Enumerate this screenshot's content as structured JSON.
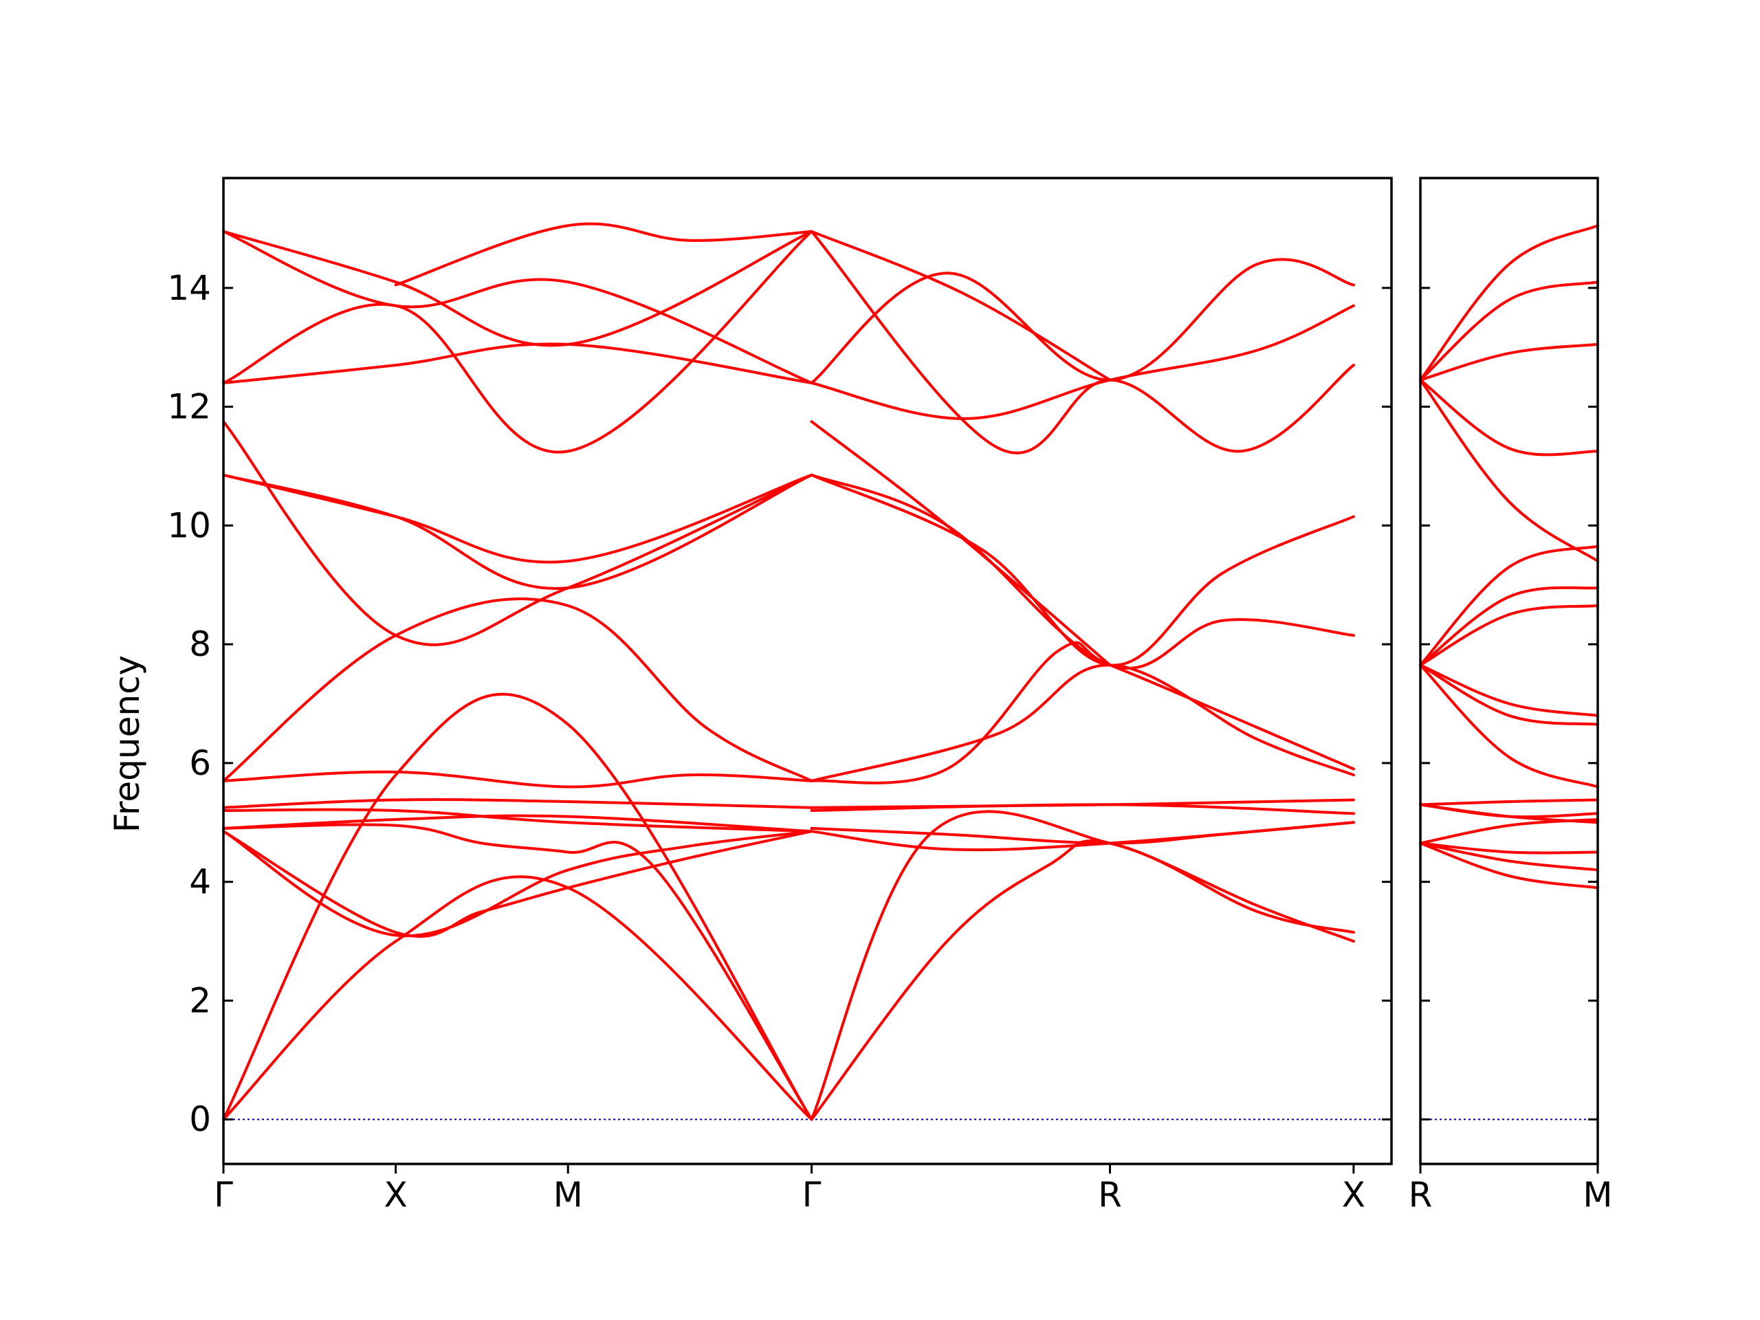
{
  "chart_data": {
    "type": "line",
    "title": "",
    "ylabel": "Frequency",
    "ylim": [
      -0.75,
      15.85
    ],
    "yticks": [
      0,
      2,
      4,
      6,
      8,
      10,
      12,
      14
    ],
    "grid": false,
    "legend": "none",
    "colors": {
      "bands": "#ff0000",
      "zero_line": "#0000cc",
      "frame": "#000000"
    },
    "panels": [
      {
        "id": "left",
        "xlim": [
          0,
          6.78
        ],
        "xticks": [
          {
            "pos": 0,
            "label": "Γ"
          },
          {
            "pos": 1,
            "label": "X"
          },
          {
            "pos": 2,
            "label": "M"
          },
          {
            "pos": 3.414,
            "label": "Γ"
          },
          {
            "pos": 5.146,
            "label": "R"
          },
          {
            "pos": 6.56,
            "label": "X"
          }
        ],
        "bands": [
          [
            [
              0,
              0
            ],
            [
              1,
              3.0
            ],
            [
              2,
              3.9
            ],
            [
              3.414,
              0
            ]
          ],
          [
            [
              0,
              0
            ],
            [
              1,
              5.8
            ],
            [
              2,
              6.65
            ],
            [
              3.414,
              0
            ]
          ],
          [
            [
              0,
              4.85
            ],
            [
              1,
              3.15
            ],
            [
              1.5,
              3.5
            ],
            [
              2,
              3.9
            ],
            [
              2.7,
              4.4
            ],
            [
              3.414,
              4.85
            ]
          ],
          [
            [
              0,
              4.85
            ],
            [
              1,
              3.1
            ],
            [
              2,
              4.2
            ],
            [
              2.7,
              4.6
            ],
            [
              3.414,
              4.85
            ]
          ],
          [
            [
              0,
              4.9
            ],
            [
              1,
              4.95
            ],
            [
              1.5,
              4.65
            ],
            [
              2,
              4.5
            ],
            [
              2.5,
              4.25
            ],
            [
              3.414,
              0
            ]
          ],
          [
            [
              0,
              4.9
            ],
            [
              1,
              5.05
            ],
            [
              2,
              5.1
            ],
            [
              3.414,
              4.85
            ]
          ],
          [
            [
              0,
              5.2
            ],
            [
              1,
              5.2
            ],
            [
              2,
              5.0
            ],
            [
              3.414,
              4.85
            ]
          ],
          [
            [
              0,
              5.25
            ],
            [
              1,
              5.38
            ],
            [
              2,
              5.35
            ],
            [
              3.414,
              5.25
            ]
          ],
          [
            [
              0,
              5.7
            ],
            [
              1,
              5.85
            ],
            [
              2,
              5.6
            ],
            [
              2.7,
              5.8
            ],
            [
              3.414,
              5.7
            ]
          ],
          [
            [
              0,
              5.7
            ],
            [
              1,
              8.15
            ],
            [
              2,
              8.65
            ],
            [
              2.8,
              6.6
            ],
            [
              3.414,
              5.7
            ]
          ],
          [
            [
              0,
              10.85
            ],
            [
              1,
              10.15
            ],
            [
              2,
              8.95
            ],
            [
              3.414,
              10.85
            ]
          ],
          [
            [
              0,
              10.85
            ],
            [
              1,
              10.15
            ],
            [
              2,
              9.4
            ],
            [
              3.414,
              10.85
            ]
          ],
          [
            [
              0,
              11.75
            ],
            [
              1,
              8.15
            ],
            [
              2,
              8.95
            ],
            [
              3.414,
              10.85
            ]
          ],
          [
            [
              0,
              12.4
            ],
            [
              1,
              12.7
            ],
            [
              2,
              13.05
            ],
            [
              3.414,
              12.4
            ]
          ],
          [
            [
              0,
              12.4
            ],
            [
              1,
              13.7
            ],
            [
              2,
              11.25
            ],
            [
              3.414,
              14.95
            ]
          ],
          [
            [
              0,
              14.95
            ],
            [
              1,
              14.1
            ],
            [
              2,
              13.05
            ],
            [
              3.414,
              14.95
            ]
          ],
          [
            [
              0,
              14.95
            ],
            [
              1,
              13.7
            ],
            [
              2,
              14.1
            ],
            [
              3.414,
              12.4
            ]
          ],
          [
            [
              1,
              14.05
            ],
            [
              2,
              15.05
            ],
            [
              2.7,
              14.8
            ],
            [
              3.414,
              14.95
            ]
          ],
          [
            [
              3.414,
              0
            ],
            [
              4.2,
              3.0
            ],
            [
              4.8,
              4.3
            ],
            [
              5.146,
              4.65
            ],
            [
              6.0,
              3.6
            ],
            [
              6.56,
              3.0
            ]
          ],
          [
            [
              3.414,
              0
            ],
            [
              4.1,
              4.8
            ],
            [
              5.146,
              4.65
            ],
            [
              6.0,
              3.5
            ],
            [
              6.56,
              3.15
            ]
          ],
          [
            [
              3.414,
              4.85
            ],
            [
              4.2,
              4.55
            ],
            [
              5.146,
              4.65
            ],
            [
              6.56,
              5.0
            ]
          ],
          [
            [
              3.414,
              4.9
            ],
            [
              4.2,
              4.8
            ],
            [
              5.146,
              4.65
            ],
            [
              5.8,
              4.8
            ],
            [
              6.56,
              5.0
            ]
          ],
          [
            [
              3.414,
              5.2
            ],
            [
              5.146,
              5.3
            ],
            [
              6.56,
              5.15
            ]
          ],
          [
            [
              3.414,
              5.25
            ],
            [
              5.146,
              5.3
            ],
            [
              6.56,
              5.38
            ]
          ],
          [
            [
              3.414,
              5.7
            ],
            [
              4.5,
              6.5
            ],
            [
              5.146,
              7.65
            ],
            [
              6.0,
              6.4
            ],
            [
              6.56,
              5.8
            ]
          ],
          [
            [
              3.414,
              5.7
            ],
            [
              4.2,
              5.9
            ],
            [
              4.85,
              7.9
            ],
            [
              5.146,
              7.65
            ],
            [
              6.0,
              6.6
            ],
            [
              6.56,
              5.9
            ]
          ],
          [
            [
              3.414,
              10.85
            ],
            [
              4.2,
              10.0
            ],
            [
              5.146,
              7.65
            ],
            [
              5.8,
              8.4
            ],
            [
              6.56,
              8.15
            ]
          ],
          [
            [
              3.414,
              10.85
            ],
            [
              4.4,
              9.6
            ],
            [
              5.146,
              7.65
            ],
            [
              5.8,
              9.2
            ],
            [
              6.56,
              10.15
            ]
          ],
          [
            [
              3.414,
              11.75
            ],
            [
              4.2,
              10.0
            ],
            [
              5.146,
              7.65
            ]
          ],
          [
            [
              3.414,
              12.4
            ],
            [
              4.3,
              11.8
            ],
            [
              5.146,
              12.45
            ],
            [
              6.0,
              12.95
            ],
            [
              6.56,
              13.7
            ]
          ],
          [
            [
              3.414,
              12.4
            ],
            [
              4.2,
              14.25
            ],
            [
              5.146,
              12.45
            ],
            [
              6.0,
              14.4
            ],
            [
              6.56,
              14.05
            ]
          ],
          [
            [
              3.414,
              14.95
            ],
            [
              4.3,
              13.9
            ],
            [
              5.146,
              12.45
            ]
          ],
          [
            [
              3.414,
              14.95
            ],
            [
              4.5,
              11.3
            ],
            [
              5.146,
              12.45
            ],
            [
              5.9,
              11.25
            ],
            [
              6.56,
              12.7
            ]
          ]
        ]
      },
      {
        "id": "right",
        "xlim": [
          0,
          1
        ],
        "xticks": [
          {
            "pos": 0,
            "label": "R"
          },
          {
            "pos": 1,
            "label": "M"
          }
        ],
        "bands": [
          [
            [
              0,
              4.65
            ],
            [
              0.5,
              4.1
            ],
            [
              1,
              3.9
            ]
          ],
          [
            [
              0,
              4.65
            ],
            [
              0.5,
              4.35
            ],
            [
              1,
              4.2
            ]
          ],
          [
            [
              0,
              4.65
            ],
            [
              0.5,
              4.5
            ],
            [
              1,
              4.5
            ]
          ],
          [
            [
              0,
              4.65
            ],
            [
              0.5,
              4.95
            ],
            [
              1,
              5.05
            ]
          ],
          [
            [
              0,
              5.3
            ],
            [
              0.5,
              5.1
            ],
            [
              1,
              5.0
            ]
          ],
          [
            [
              0,
              5.3
            ],
            [
              0.5,
              5.1
            ],
            [
              1,
              5.15
            ]
          ],
          [
            [
              0,
              5.3
            ],
            [
              0.5,
              5.35
            ],
            [
              1,
              5.38
            ]
          ],
          [
            [
              0,
              7.65
            ],
            [
              0.5,
              6.1
            ],
            [
              1,
              5.6
            ]
          ],
          [
            [
              0,
              7.65
            ],
            [
              0.5,
              6.8
            ],
            [
              1,
              6.65
            ]
          ],
          [
            [
              0,
              7.65
            ],
            [
              0.5,
              7.0
            ],
            [
              1,
              6.8
            ]
          ],
          [
            [
              0,
              7.65
            ],
            [
              0.5,
              8.5
            ],
            [
              1,
              8.65
            ]
          ],
          [
            [
              0,
              7.65
            ],
            [
              0.5,
              8.8
            ],
            [
              1,
              8.95
            ]
          ],
          [
            [
              0,
              7.65
            ],
            [
              0.5,
              9.3
            ],
            [
              1,
              9.65
            ]
          ],
          [
            [
              0,
              12.45
            ],
            [
              0.5,
              10.4
            ],
            [
              1,
              9.4
            ]
          ],
          [
            [
              0,
              12.45
            ],
            [
              0.5,
              11.3
            ],
            [
              1,
              11.25
            ]
          ],
          [
            [
              0,
              12.45
            ],
            [
              0.5,
              12.9
            ],
            [
              1,
              13.05
            ]
          ],
          [
            [
              0,
              12.45
            ],
            [
              0.5,
              13.8
            ],
            [
              1,
              14.1
            ]
          ],
          [
            [
              0,
              12.45
            ],
            [
              0.5,
              14.4
            ],
            [
              1,
              15.05
            ]
          ]
        ]
      }
    ]
  }
}
